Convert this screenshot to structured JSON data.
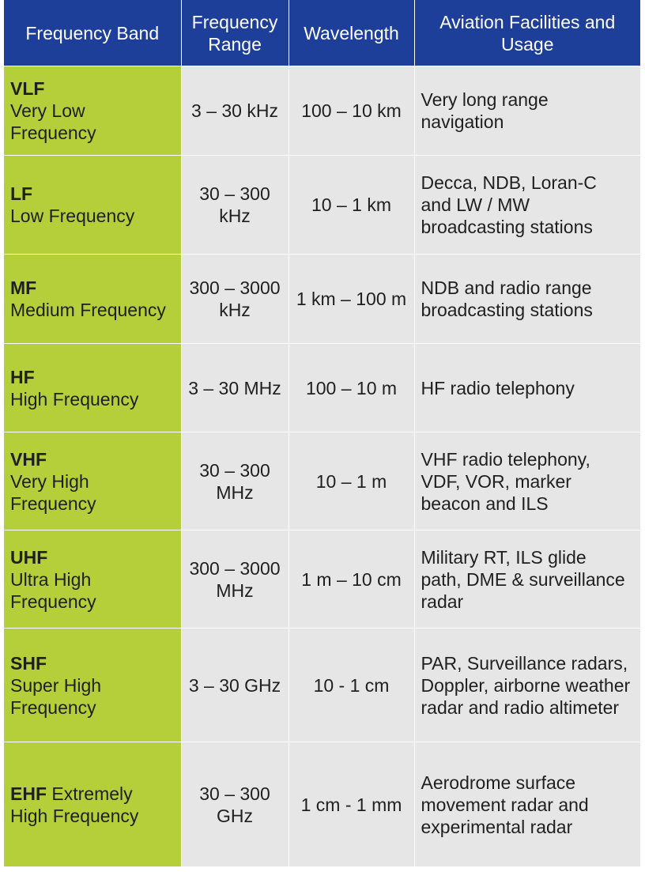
{
  "headers": {
    "band": "Frequency Band",
    "range": "Frequency Range",
    "wavelength": "Wavelength",
    "usage": "Aviation Facilities and Usage"
  },
  "rows": [
    {
      "abbr": "VLF",
      "name": "Very Low Frequency",
      "range": "3 – 30 kHz",
      "wavelength": "100 – 10 km",
      "usage": "Very long range navigation"
    },
    {
      "abbr": "LF",
      "name": "Low Frequency",
      "range": "30 – 300 kHz",
      "wavelength": "10 – 1 km",
      "usage": "Decca, NDB, Loran-C and LW / MW broadcasting stations"
    },
    {
      "abbr": "MF",
      "name": "Medium Frequency",
      "range": "300 – 3000 kHz",
      "wavelength": "1 km – 100 m",
      "usage": "NDB and radio range broadcasting stations"
    },
    {
      "abbr": "HF",
      "name": "High Frequency",
      "range": "3 – 30 MHz",
      "wavelength": "100 – 10 m",
      "usage": "HF radio telephony"
    },
    {
      "abbr": "VHF",
      "name": "Very High Frequency",
      "range": "30 – 300 MHz",
      "wavelength": "10 – 1 m",
      "usage": "VHF radio telephony, VDF, VOR, marker beacon and ILS"
    },
    {
      "abbr": "UHF",
      "name": "Ultra High Frequency",
      "range": "300 – 3000 MHz",
      "wavelength": "1 m – 10 cm",
      "usage": "Military RT, ILS glide path, DME & surveillance radar"
    },
    {
      "abbr": "SHF",
      "name": "Super High Frequency",
      "range": "3 – 30 GHz",
      "wavelength": "10 - 1 cm",
      "usage": "PAR, Surveillance radars, Doppler, airborne weather radar and radio altimeter"
    },
    {
      "abbr": "EHF",
      "name": "Extremely High Frequency",
      "range": "30 – 300 GHz",
      "wavelength": "1 cm - 1 mm",
      "usage": "Aerodrome surface movement radar and experimental radar"
    }
  ],
  "colors": {
    "header_bg": "#1d3f9a",
    "band_bg": "#b5cf3b",
    "cell_bg": "#e6e6e6"
  }
}
